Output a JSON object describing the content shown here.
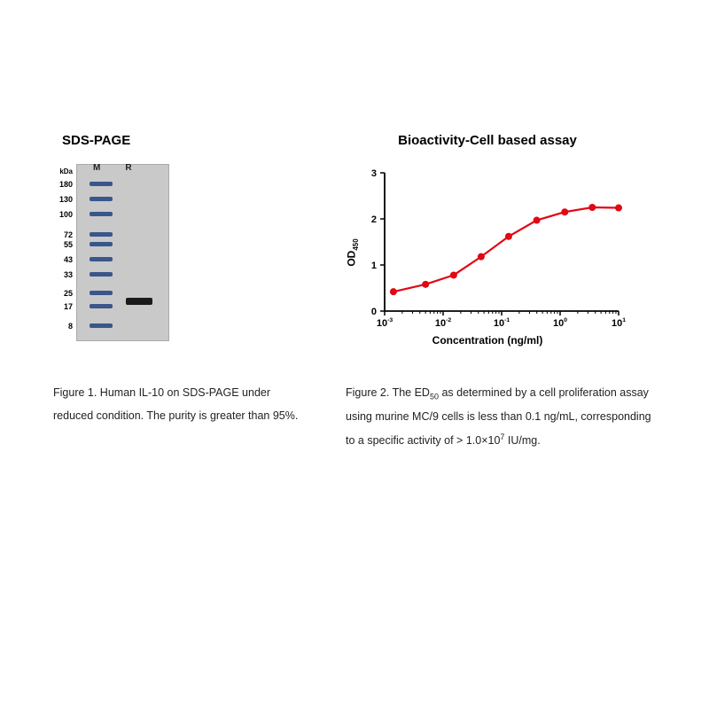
{
  "left_panel": {
    "title": "SDS-PAGE",
    "gel": {
      "unit_label": "kDa",
      "lane_labels": {
        "m": "M",
        "r": "R"
      },
      "marker_bands_kda": [
        180,
        130,
        100,
        72,
        55,
        43,
        33,
        25,
        17,
        8
      ],
      "marker_band_positions_pct": [
        2,
        12,
        22,
        35,
        42,
        52,
        62,
        74,
        83,
        96
      ],
      "marker_color": "#3a568a",
      "sample_band_position_pct": 79,
      "sample_band_color": "#1a1a1a",
      "gel_bg": "#c9c9c9"
    }
  },
  "right_panel": {
    "title": "Bioactivity-Cell based assay",
    "chart": {
      "type": "scatter-line",
      "x_scale": "log",
      "xlim_exp": [
        -3,
        1
      ],
      "ylim": [
        0,
        3
      ],
      "ytick_step": 1,
      "xtick_exponents": [
        -3,
        -2,
        -1,
        0,
        1
      ],
      "ylabel": "OD",
      "ylabel_sub": "450",
      "xlabel": "Concentration (ng/ml)",
      "points": [
        {
          "x_exp": -2.85,
          "y": 0.42
        },
        {
          "x_exp": -2.3,
          "y": 0.58
        },
        {
          "x_exp": -1.82,
          "y": 0.78
        },
        {
          "x_exp": -1.35,
          "y": 1.18
        },
        {
          "x_exp": -0.88,
          "y": 1.62
        },
        {
          "x_exp": -0.4,
          "y": 1.97
        },
        {
          "x_exp": 0.08,
          "y": 2.15
        },
        {
          "x_exp": 0.55,
          "y": 2.25
        },
        {
          "x_exp": 1.0,
          "y": 2.24
        }
      ],
      "marker_color": "#e30613",
      "line_color": "#e30613",
      "marker_radius": 4,
      "line_width": 2.2,
      "axis_color": "#000000",
      "tick_fontsize": 11,
      "label_fontsize": 12,
      "background_color": "#ffffff"
    }
  },
  "captions": {
    "left": "Figure 1. Human IL-10 on SDS-PAGE under reduced condition. The purity is greater than 95%.",
    "right_pre": "Figure 2. The ED",
    "right_sub": "50",
    "right_mid": " as determined by a cell proliferation assay using murine MC/9 cells is less than 0.1 ng/mL, corresponding to a specific activity of > 1.0×10",
    "right_sup": "7",
    "right_post": " IU/mg."
  }
}
